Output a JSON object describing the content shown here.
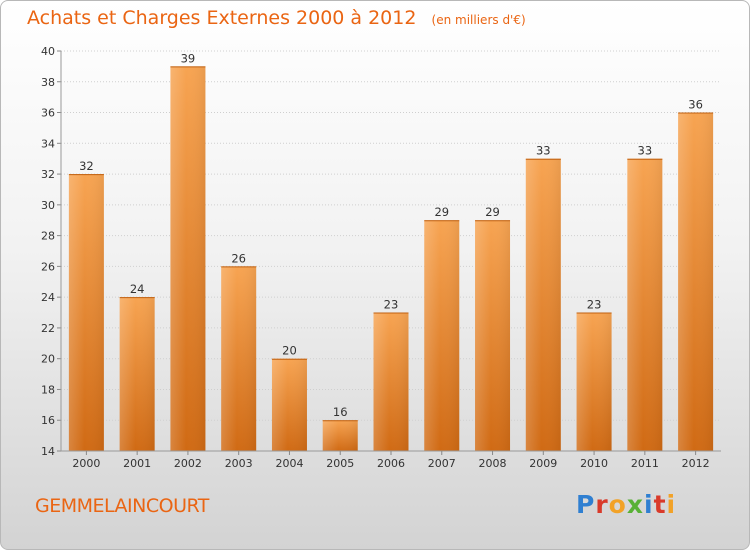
{
  "header": {
    "title": "Achats et Charges Externes 2000 à 2012",
    "subtitle": "(en milliers d'€)"
  },
  "footer": {
    "place": "GEMMELAINCOURT",
    "logo_text": "Proxiti",
    "logo_colors": [
      "#2f7fd1",
      "#d93a2a",
      "#f2a227",
      "#58b135",
      "#2f7fd1",
      "#d93a2a",
      "#f2a227"
    ]
  },
  "chart_data": {
    "type": "bar",
    "title": "Achats et Charges Externes 2000 à 2012",
    "subtitle": "(en milliers d'€)",
    "xlabel": "",
    "ylabel": "",
    "categories": [
      "2000",
      "2001",
      "2002",
      "2003",
      "2004",
      "2005",
      "2006",
      "2007",
      "2008",
      "2009",
      "2010",
      "2011",
      "2012"
    ],
    "values": [
      32,
      24,
      39,
      26,
      20,
      16,
      23,
      29,
      29,
      33,
      23,
      33,
      36
    ],
    "ylim": [
      14,
      40
    ],
    "yticks": [
      14,
      16,
      18,
      20,
      22,
      24,
      26,
      28,
      30,
      32,
      34,
      36,
      38,
      40
    ],
    "grid": true,
    "bar_color_top": "#f7a452",
    "bar_color_bottom": "#d06a14"
  }
}
